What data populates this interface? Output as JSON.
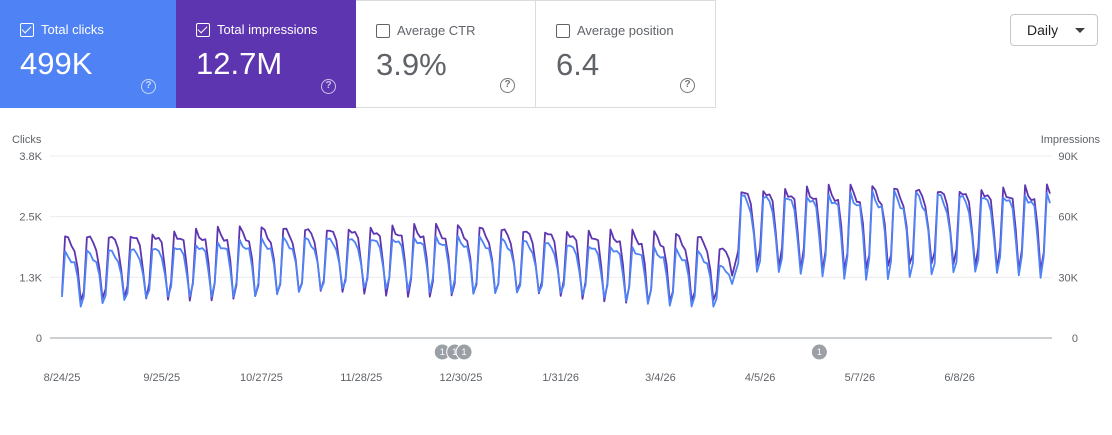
{
  "cards": [
    {
      "label": "Total clicks",
      "value": "499K",
      "checked": true,
      "bg": "#4e82f5",
      "fg": "#ffffff"
    },
    {
      "label": "Total impressions",
      "value": "12.7M",
      "checked": true,
      "bg": "#5e35b1",
      "fg": "#ffffff"
    },
    {
      "label": "Average CTR",
      "value": "3.9%",
      "checked": false,
      "bg": "#ffffff",
      "fg": "#5f6368"
    },
    {
      "label": "Average position",
      "value": "6.4",
      "checked": false,
      "bg": "#ffffff",
      "fg": "#5f6368"
    }
  ],
  "help_glyph": "?",
  "period_select": {
    "value": "Daily"
  },
  "chart_data": {
    "type": "line",
    "left_axis": {
      "label": "Clicks",
      "ticks": [
        "3.8K",
        "2.5K",
        "1.3K",
        "0"
      ],
      "range": [
        0,
        3800
      ]
    },
    "right_axis": {
      "label": "Impressions",
      "ticks": [
        "90K",
        "60K",
        "30K",
        "0"
      ],
      "range": [
        0,
        90000
      ]
    },
    "x_ticks": [
      "8/24/25",
      "9/25/25",
      "10/27/25",
      "11/28/25",
      "12/30/25",
      "1/31/26",
      "3/4/26",
      "4/5/26",
      "5/7/26",
      "6/8/26"
    ],
    "x_tick_days": [
      0,
      32,
      64,
      96,
      128,
      160,
      192,
      224,
      256,
      288
    ],
    "total_days": 317,
    "annotations": [
      {
        "day": 122,
        "label": "1"
      },
      {
        "day": 126,
        "label": "1"
      },
      {
        "day": 129,
        "label": "1"
      },
      {
        "day": 243,
        "label": "1"
      }
    ],
    "series": [
      {
        "name": "Impressions",
        "axis": "right",
        "color": "#5e35b1",
        "segments": [
          {
            "start": 0,
            "end": 210,
            "mon": 50000,
            "sat": 17000,
            "drift": 5000
          },
          {
            "start": 211,
            "end": 215,
            "mon": 45000,
            "sat": 18000,
            "drift": 0
          },
          {
            "start": 216,
            "end": 317,
            "mon": 74000,
            "sat": 35000,
            "drift": 0
          }
        ]
      },
      {
        "name": "Clicks",
        "axis": "left",
        "color": "#4e82f5",
        "segments": [
          {
            "start": 0,
            "end": 210,
            "mon": 1750,
            "sat": 650,
            "drift": 350
          },
          {
            "start": 211,
            "end": 215,
            "mon": 1500,
            "sat": 700,
            "drift": 0
          },
          {
            "start": 216,
            "end": 317,
            "mon": 3000,
            "sat": 1300,
            "drift": 0
          }
        ]
      }
    ]
  }
}
